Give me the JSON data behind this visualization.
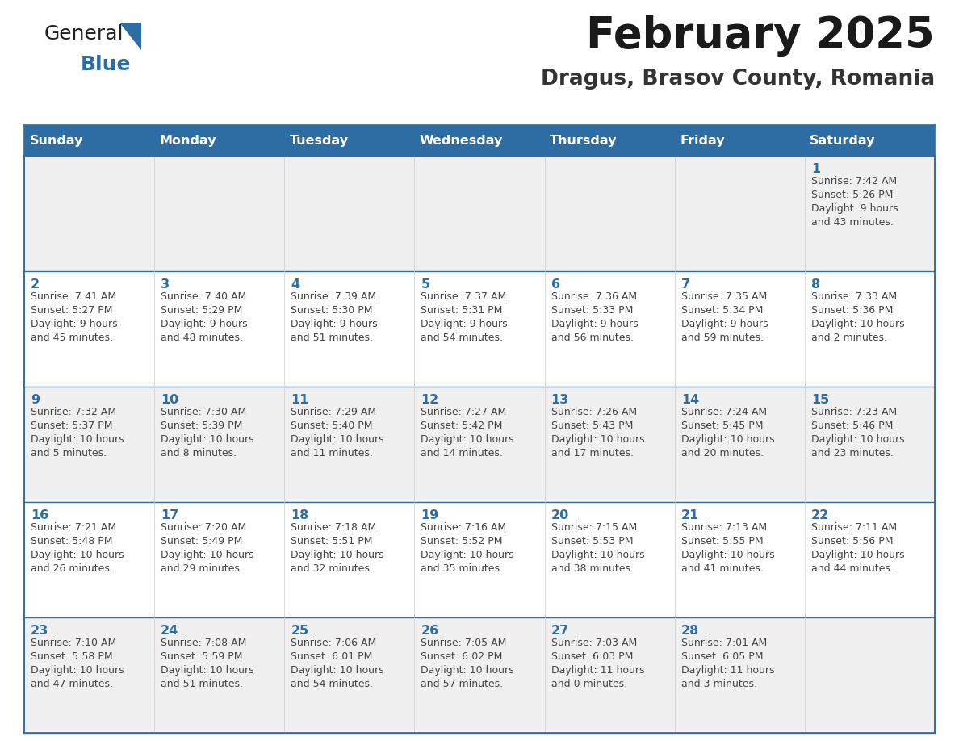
{
  "title": "February 2025",
  "subtitle": "Dragus, Brasov County, Romania",
  "header_bg": "#2E6DA4",
  "header_text": "#FFFFFF",
  "cell_bg_odd": "#F0F0F0",
  "cell_bg_even": "#FFFFFF",
  "text_color": "#444444",
  "day_number_color": "#2E6DA4",
  "day_names": [
    "Sunday",
    "Monday",
    "Tuesday",
    "Wednesday",
    "Thursday",
    "Friday",
    "Saturday"
  ],
  "days_data": [
    {
      "day": 1,
      "col": 6,
      "row": 0,
      "sunrise": "7:42 AM",
      "sunset": "5:26 PM",
      "daylight": "9 hours and 43 minutes."
    },
    {
      "day": 2,
      "col": 0,
      "row": 1,
      "sunrise": "7:41 AM",
      "sunset": "5:27 PM",
      "daylight": "9 hours and 45 minutes."
    },
    {
      "day": 3,
      "col": 1,
      "row": 1,
      "sunrise": "7:40 AM",
      "sunset": "5:29 PM",
      "daylight": "9 hours and 48 minutes."
    },
    {
      "day": 4,
      "col": 2,
      "row": 1,
      "sunrise": "7:39 AM",
      "sunset": "5:30 PM",
      "daylight": "9 hours and 51 minutes."
    },
    {
      "day": 5,
      "col": 3,
      "row": 1,
      "sunrise": "7:37 AM",
      "sunset": "5:31 PM",
      "daylight": "9 hours and 54 minutes."
    },
    {
      "day": 6,
      "col": 4,
      "row": 1,
      "sunrise": "7:36 AM",
      "sunset": "5:33 PM",
      "daylight": "9 hours and 56 minutes."
    },
    {
      "day": 7,
      "col": 5,
      "row": 1,
      "sunrise": "7:35 AM",
      "sunset": "5:34 PM",
      "daylight": "9 hours and 59 minutes."
    },
    {
      "day": 8,
      "col": 6,
      "row": 1,
      "sunrise": "7:33 AM",
      "sunset": "5:36 PM",
      "daylight": "10 hours and 2 minutes."
    },
    {
      "day": 9,
      "col": 0,
      "row": 2,
      "sunrise": "7:32 AM",
      "sunset": "5:37 PM",
      "daylight": "10 hours and 5 minutes."
    },
    {
      "day": 10,
      "col": 1,
      "row": 2,
      "sunrise": "7:30 AM",
      "sunset": "5:39 PM",
      "daylight": "10 hours and 8 minutes."
    },
    {
      "day": 11,
      "col": 2,
      "row": 2,
      "sunrise": "7:29 AM",
      "sunset": "5:40 PM",
      "daylight": "10 hours and 11 minutes."
    },
    {
      "day": 12,
      "col": 3,
      "row": 2,
      "sunrise": "7:27 AM",
      "sunset": "5:42 PM",
      "daylight": "10 hours and 14 minutes."
    },
    {
      "day": 13,
      "col": 4,
      "row": 2,
      "sunrise": "7:26 AM",
      "sunset": "5:43 PM",
      "daylight": "10 hours and 17 minutes."
    },
    {
      "day": 14,
      "col": 5,
      "row": 2,
      "sunrise": "7:24 AM",
      "sunset": "5:45 PM",
      "daylight": "10 hours and 20 minutes."
    },
    {
      "day": 15,
      "col": 6,
      "row": 2,
      "sunrise": "7:23 AM",
      "sunset": "5:46 PM",
      "daylight": "10 hours and 23 minutes."
    },
    {
      "day": 16,
      "col": 0,
      "row": 3,
      "sunrise": "7:21 AM",
      "sunset": "5:48 PM",
      "daylight": "10 hours and 26 minutes."
    },
    {
      "day": 17,
      "col": 1,
      "row": 3,
      "sunrise": "7:20 AM",
      "sunset": "5:49 PM",
      "daylight": "10 hours and 29 minutes."
    },
    {
      "day": 18,
      "col": 2,
      "row": 3,
      "sunrise": "7:18 AM",
      "sunset": "5:51 PM",
      "daylight": "10 hours and 32 minutes."
    },
    {
      "day": 19,
      "col": 3,
      "row": 3,
      "sunrise": "7:16 AM",
      "sunset": "5:52 PM",
      "daylight": "10 hours and 35 minutes."
    },
    {
      "day": 20,
      "col": 4,
      "row": 3,
      "sunrise": "7:15 AM",
      "sunset": "5:53 PM",
      "daylight": "10 hours and 38 minutes."
    },
    {
      "day": 21,
      "col": 5,
      "row": 3,
      "sunrise": "7:13 AM",
      "sunset": "5:55 PM",
      "daylight": "10 hours and 41 minutes."
    },
    {
      "day": 22,
      "col": 6,
      "row": 3,
      "sunrise": "7:11 AM",
      "sunset": "5:56 PM",
      "daylight": "10 hours and 44 minutes."
    },
    {
      "day": 23,
      "col": 0,
      "row": 4,
      "sunrise": "7:10 AM",
      "sunset": "5:58 PM",
      "daylight": "10 hours and 47 minutes."
    },
    {
      "day": 24,
      "col": 1,
      "row": 4,
      "sunrise": "7:08 AM",
      "sunset": "5:59 PM",
      "daylight": "10 hours and 51 minutes."
    },
    {
      "day": 25,
      "col": 2,
      "row": 4,
      "sunrise": "7:06 AM",
      "sunset": "6:01 PM",
      "daylight": "10 hours and 54 minutes."
    },
    {
      "day": 26,
      "col": 3,
      "row": 4,
      "sunrise": "7:05 AM",
      "sunset": "6:02 PM",
      "daylight": "10 hours and 57 minutes."
    },
    {
      "day": 27,
      "col": 4,
      "row": 4,
      "sunrise": "7:03 AM",
      "sunset": "6:03 PM",
      "daylight": "11 hours and 0 minutes."
    },
    {
      "day": 28,
      "col": 5,
      "row": 4,
      "sunrise": "7:01 AM",
      "sunset": "6:05 PM",
      "daylight": "11 hours and 3 minutes."
    }
  ],
  "fig_width": 11.88,
  "fig_height": 9.18,
  "dpi": 100
}
